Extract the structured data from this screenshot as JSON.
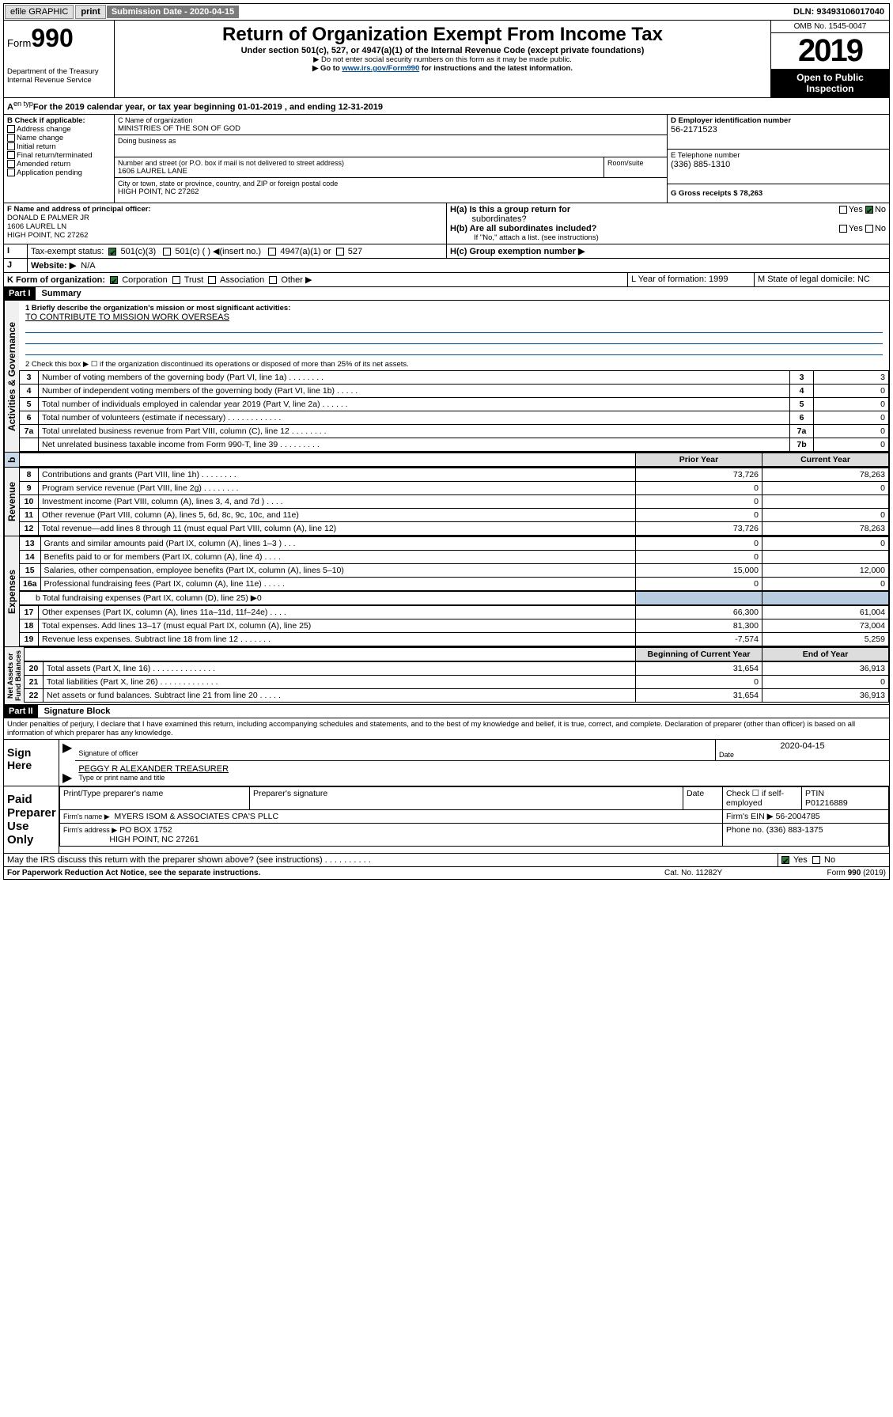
{
  "topbar": {
    "efile": "efile GRAPHIC",
    "print": "print",
    "subdate_lbl": "Submission Date - 2020-04-15",
    "dln": "DLN: 93493106017040"
  },
  "hdr": {
    "form": "Form",
    "num": "990",
    "title": "Return of Organization Exempt From Income Tax",
    "sub1": "Under section 501(c), 527, or 4947(a)(1) of the Internal Revenue Code (except private foundations)",
    "sub2": "▶ Do not enter social security numbers on this form as it may be made public.",
    "sub3": "▶ Go to ",
    "link": "www.irs.gov/Form990",
    "sub3b": " for instructions and the latest information.",
    "dept": "Department of the Treasury",
    "irs": "Internal Revenue Service",
    "omb": "OMB No. 1545-0047",
    "year": "2019",
    "open": "Open to Public",
    "insp": "Inspection"
  },
  "a": {
    "line": "For the 2019 calendar year, or tax year beginning 01-01-2019    , and ending 12-31-2019"
  },
  "b": {
    "lbl": "B Check if applicable:",
    "addr": "Address change",
    "name": "Name change",
    "init": "Initial return",
    "final": "Final return/terminated",
    "amend": "Amended return",
    "app": "Application pending"
  },
  "c": {
    "lbl": "C Name of organization",
    "org": "MINISTRIES OF THE SON OF GOD",
    "dba": "Doing business as",
    "street_lbl": "Number and street (or P.O. box if mail is not delivered to street address)",
    "room": "Room/suite",
    "street": "1606 LAUREL LANE",
    "city_lbl": "City or town, state or province, country, and ZIP or foreign postal code",
    "city": "HIGH POINT, NC  27262"
  },
  "d": {
    "lbl": "D Employer identification number",
    "ein": "56-2171523"
  },
  "e": {
    "lbl": "E Telephone number",
    "tel": "(336) 885-1310"
  },
  "g": {
    "lbl": "G Gross receipts $ 78,263"
  },
  "f": {
    "lbl": "F  Name and address of principal officer:",
    "name": "DONALD E PALMER JR",
    "addr1": "1606 LAUREL LN",
    "addr2": "HIGH POINT, NC  27262"
  },
  "h": {
    "a": "H(a)  Is this a group return for",
    "a2": "subordinates?",
    "b": "H(b)  Are all subordinates included?",
    "bnote": "If \"No,\" attach a list. (see instructions)",
    "c": "H(c)  Group exemption number ▶",
    "yes": "Yes",
    "no": "No"
  },
  "i": {
    "lbl": "Tax-exempt status:",
    "c3": "501(c)(3)",
    "c": "501(c) (  ) ◀(insert no.)",
    "a1": "4947(a)(1) or",
    "s527": "527"
  },
  "j": {
    "lbl": "Website: ▶",
    "val": "N/A"
  },
  "k": {
    "lbl": "K Form of organization:",
    "corp": "Corporation",
    "trust": "Trust",
    "assoc": "Association",
    "other": "Other ▶"
  },
  "l": {
    "lbl": "L Year of formation: 1999"
  },
  "m": {
    "lbl": "M State of legal domicile: NC"
  },
  "p1": {
    "hdr": "Part I",
    "title": "Summary",
    "l1": "1  Briefly describe the organization's mission or most significant activities:",
    "mission": "TO CONTRIBUTE TO MISSION WORK OVERSEAS",
    "l2": "2   Check this box ▶ ☐  if the organization discontinued its operations or disposed of more than 25% of its net assets.",
    "rows": [
      {
        "n": "3",
        "t": "Number of voting members of the governing body (Part VI, line 1a)   .    .    .    .    .    .    .    .",
        "rn": "3",
        "v": "3"
      },
      {
        "n": "4",
        "t": "Number of independent voting members of the governing body (Part VI, line 1b)   .    .    .    .    .",
        "rn": "4",
        "v": "0"
      },
      {
        "n": "5",
        "t": "Total number of individuals employed in calendar year 2019 (Part V, line 2a)   .    .    .    .    .    .",
        "rn": "5",
        "v": "0"
      },
      {
        "n": "6",
        "t": "Total number of volunteers (estimate if necessary)   .    .    .    .    .    .    .    .    .    .    .    .",
        "rn": "6",
        "v": "0"
      },
      {
        "n": "7a",
        "t": "Total unrelated business revenue from Part VIII, column (C), line 12   .    .    .    .    .    .    .    .",
        "rn": "7a",
        "v": "0"
      },
      {
        "n": "",
        "t": "Net unrelated business taxable income from Form 990-T, line 39   .    .    .    .    .    .    .    .    .",
        "rn": "7b",
        "v": "0"
      }
    ],
    "py": "Prior Year",
    "cy": "Current Year",
    "rev": [
      {
        "n": "8",
        "t": "Contributions and grants (Part VIII, line 1h)   .    .    .    .    .    .    .    .",
        "p": "73,726",
        "c": "78,263"
      },
      {
        "n": "9",
        "t": "Program service revenue (Part VIII, line 2g)   .    .    .    .    .    .    .    .",
        "p": "0",
        "c": "0"
      },
      {
        "n": "10",
        "t": "Investment income (Part VIII, column (A), lines 3, 4, and 7d )   .    .    .    .",
        "p": "0",
        "c": ""
      },
      {
        "n": "11",
        "t": "Other revenue (Part VIII, column (A), lines 5, 6d, 8c, 9c, 10c, and 11e)",
        "p": "0",
        "c": "0"
      },
      {
        "n": "12",
        "t": "Total revenue—add lines 8 through 11 (must equal Part VIII, column (A), line 12)",
        "p": "73,726",
        "c": "78,263"
      }
    ],
    "exp": [
      {
        "n": "13",
        "t": "Grants and similar amounts paid (Part IX, column (A), lines 1–3 )   .    .    .",
        "p": "0",
        "c": "0"
      },
      {
        "n": "14",
        "t": "Benefits paid to or for members (Part IX, column (A), line 4)   .    .    .    .",
        "p": "0",
        "c": ""
      },
      {
        "n": "15",
        "t": "Salaries, other compensation, employee benefits (Part IX, column (A), lines 5–10)",
        "p": "15,000",
        "c": "12,000"
      },
      {
        "n": "16a",
        "t": "Professional fundraising fees (Part IX, column (A), line 11e)   .    .    .    .    .",
        "p": "0",
        "c": "0"
      }
    ],
    "l16b": "b   Total fundraising expenses (Part IX, column (D), line 25) ▶0",
    "exp2": [
      {
        "n": "17",
        "t": "Other expenses (Part IX, column (A), lines 11a–11d, 11f–24e)   .    .    .    .",
        "p": "66,300",
        "c": "61,004"
      },
      {
        "n": "18",
        "t": "Total expenses. Add lines 13–17 (must equal Part IX, column (A), line 25)",
        "p": "81,300",
        "c": "73,004"
      },
      {
        "n": "19",
        "t": "Revenue less expenses. Subtract line 18 from line 12   .    .    .    .    .    .    .",
        "p": "-7,574",
        "c": "5,259"
      }
    ],
    "bcy": "Beginning of Current Year",
    "eoy": "End of Year",
    "na": [
      {
        "n": "20",
        "t": "Total assets (Part X, line 16)   .    .    .    .    .    .    .    .    .    .    .    .    .    .",
        "p": "31,654",
        "c": "36,913"
      },
      {
        "n": "21",
        "t": "Total liabilities (Part X, line 26)   .    .    .    .    .    .    .    .    .    .    .    .    .",
        "p": "0",
        "c": "0"
      },
      {
        "n": "22",
        "t": "Net assets or fund balances. Subtract line 21 from line 20   .    .    .    .    .",
        "p": "31,654",
        "c": "36,913"
      }
    ]
  },
  "p2": {
    "hdr": "Part II",
    "title": "Signature Block",
    "decl": "Under penalties of perjury, I declare that I have examined this return, including accompanying schedules and statements, and to the best of my knowledge and belief, it is true, correct, and complete. Declaration of preparer (other than officer) is based on all information of which preparer has any knowledge.",
    "sign": "Sign Here",
    "sigoff": "Signature of officer",
    "date": "Date",
    "dateval": "2020-04-15",
    "name": "PEGGY R ALEXANDER  TREASURER",
    "typename": "Type or print name and title",
    "paid": "Paid Preparer Use Only",
    "prep_lbl": "Print/Type preparer's name",
    "prepsig": "Preparer's signature",
    "check_lbl": "Check ☐ if self-employed",
    "ptin_lbl": "PTIN",
    "ptin": "P01216889",
    "firm_lbl": "Firm's name   ▶",
    "firm": "MYERS ISOM & ASSOCIATES CPA'S PLLC",
    "ein_lbl": "Firm's EIN ▶ 56-2004785",
    "addr_lbl": "Firm's address ▶",
    "addr": "PO BOX 1752",
    "addr2": "HIGH POINT, NC  27261",
    "phone": "Phone no. (336) 883-1375",
    "discuss": "May the IRS discuss this return with the preparer shown above? (see instructions)    .    .    .    .    .    .    .    .    .    .",
    "yes": "Yes",
    "no": "No"
  },
  "ftr": {
    "pra": "For Paperwork Reduction Act Notice, see the separate instructions.",
    "cat": "Cat. No. 11282Y",
    "form": "Form 990 (2019)"
  }
}
